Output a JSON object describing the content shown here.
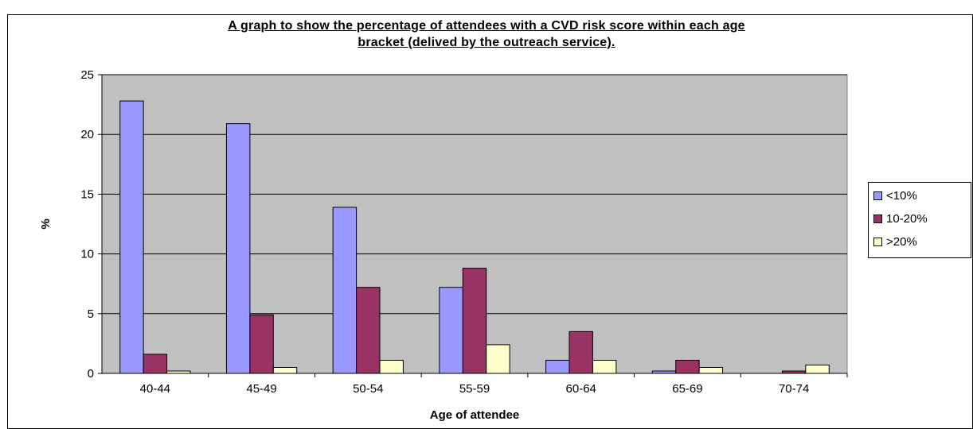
{
  "chart_data": {
    "type": "bar",
    "title_line1": "A graph to show the percentage of attendees with a  CVD risk score within each age",
    "title_line2": "bracket (delived by the outreach service).",
    "xlabel": "Age of attendee",
    "ylabel": "%",
    "ylim": [
      0,
      25
    ],
    "yticks": [
      "0",
      "5",
      "10",
      "15",
      "20",
      "25"
    ],
    "categories": [
      "40-44",
      "45-49",
      "50-54",
      "55-59",
      "60-64",
      "65-69",
      "70-74"
    ],
    "series": [
      {
        "name": "<10%",
        "color": "#9999ff",
        "values": [
          22.8,
          20.9,
          13.9,
          7.2,
          1.1,
          0.2,
          0
        ]
      },
      {
        "name": "10-20%",
        "color": "#993366",
        "values": [
          1.6,
          4.9,
          7.2,
          8.8,
          3.5,
          1.1,
          0.2
        ]
      },
      {
        "name": ">20%",
        "color": "#ffffcc",
        "values": [
          0.2,
          0.5,
          1.1,
          2.4,
          1.1,
          0.5,
          0.7
        ]
      }
    ],
    "plot_background": "#c0c0c0",
    "grid": true,
    "legend_position": "right"
  }
}
